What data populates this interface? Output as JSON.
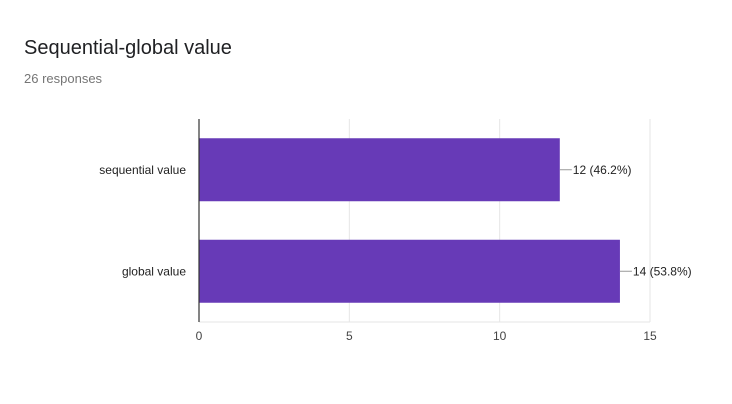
{
  "header": {
    "title": "Sequential-global value",
    "responses": "26 responses"
  },
  "colors": {
    "bar": "#673ab7",
    "grid": "#e6e6e6",
    "axis": "#333333"
  },
  "chart_data": {
    "type": "bar",
    "orientation": "horizontal",
    "categories": [
      "sequential value",
      "global value"
    ],
    "values": [
      12,
      14
    ],
    "data_labels": [
      "12 (46.2%)",
      "14 (53.8%)"
    ],
    "xlim": [
      0,
      15
    ],
    "x_ticks": [
      0,
      5,
      10,
      15
    ],
    "grid": true
  }
}
